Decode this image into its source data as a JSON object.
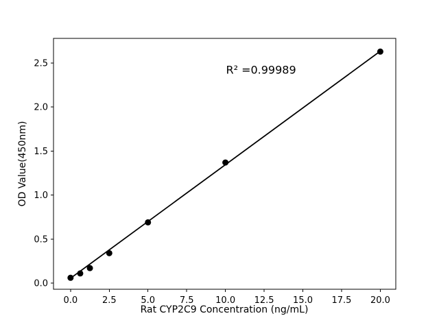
{
  "figure": {
    "background_color": "#ffffff"
  },
  "chart_data": {
    "type": "scatter",
    "title": "",
    "xlabel": "Rat CYP2C9 Concentration (ng/mL)",
    "ylabel": "OD Value(450nm)",
    "x": [
      0,
      0.625,
      1.25,
      2.5,
      5,
      10,
      20
    ],
    "y": [
      0.06,
      0.11,
      0.17,
      0.34,
      0.69,
      1.37,
      2.63
    ],
    "trendline": {
      "x1": 0,
      "y1": 0.055,
      "x2": 20,
      "y2": 2.635
    },
    "annotation": {
      "text": "R² =0.99989",
      "x": 12.3,
      "y": 2.42
    },
    "x_ticks": {
      "values": [
        0,
        2.5,
        5,
        7.5,
        10,
        12.5,
        15,
        17.5,
        20
      ],
      "labels": [
        "0.0",
        "2.5",
        "5.0",
        "7.5",
        "10.0",
        "12.5",
        "15.0",
        "17.5",
        "20.0"
      ]
    },
    "y_ticks": {
      "values": [
        0,
        0.5,
        1.0,
        1.5,
        2.0,
        2.5
      ],
      "labels": [
        "0.0",
        "0.5",
        "1.0",
        "1.5",
        "2.0",
        "2.5"
      ]
    },
    "xlim": [
      -1.1,
      21.0
    ],
    "ylim": [
      -0.07,
      2.78
    ],
    "grid": false,
    "legend": "none",
    "line_color": "#000000",
    "marker_color": "#000000",
    "axis_color": "#000000"
  }
}
